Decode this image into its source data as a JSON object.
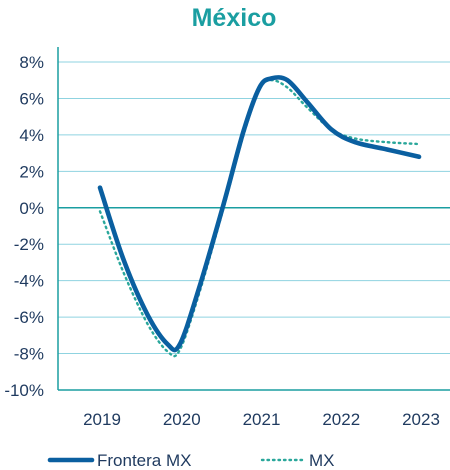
{
  "colors": {
    "title": "#1a9ea1",
    "frontera": "#0a5fa0",
    "mx": "#2aa79b",
    "axis": "#1a9ea1",
    "grid": "#8fd3e0",
    "text": "#1f3a5f"
  },
  "chart_data": {
    "type": "line",
    "title": "México",
    "xlabel": "",
    "ylabel": "",
    "x": [
      2019,
      2020,
      2021,
      2022,
      2023
    ],
    "x_ticks": [
      "2019",
      "2020",
      "2021",
      "2022",
      "2023"
    ],
    "ylim": [
      -10,
      8
    ],
    "y_ticks": [
      "8%",
      "6%",
      "4%",
      "2%",
      "0%",
      "-2%",
      "-4%",
      "-6%",
      "-8%",
      "-10%"
    ],
    "y_tick_values": [
      8,
      6,
      4,
      2,
      0,
      -2,
      -4,
      -6,
      -8,
      -10
    ],
    "grid": "horizontal",
    "legend_position": "bottom",
    "series": [
      {
        "name": "Frontera MX",
        "style": "solid",
        "points": [
          [
            2019.0,
            1.1
          ],
          [
            2019.3,
            -2.9
          ],
          [
            2019.6,
            -5.9
          ],
          [
            2019.85,
            -7.5
          ],
          [
            2020.0,
            -7.5
          ],
          [
            2020.25,
            -4.3
          ],
          [
            2020.55,
            0.2
          ],
          [
            2020.8,
            4.2
          ],
          [
            2021.0,
            6.6
          ],
          [
            2021.15,
            7.1
          ],
          [
            2021.35,
            7.0
          ],
          [
            2021.6,
            5.8
          ],
          [
            2021.9,
            4.3
          ],
          [
            2022.2,
            3.6
          ],
          [
            2022.6,
            3.2
          ],
          [
            2023.0,
            2.8
          ]
        ]
      },
      {
        "name": "MX",
        "style": "dotted",
        "points": [
          [
            2019.0,
            -0.2
          ],
          [
            2019.3,
            -3.6
          ],
          [
            2019.6,
            -6.4
          ],
          [
            2019.85,
            -7.9
          ],
          [
            2020.0,
            -7.8
          ],
          [
            2020.25,
            -4.6
          ],
          [
            2020.55,
            0.0
          ],
          [
            2020.8,
            4.0
          ],
          [
            2021.0,
            6.5
          ],
          [
            2021.15,
            7.0
          ],
          [
            2021.35,
            6.6
          ],
          [
            2021.6,
            5.5
          ],
          [
            2021.9,
            4.3
          ],
          [
            2022.2,
            3.8
          ],
          [
            2022.6,
            3.6
          ],
          [
            2023.0,
            3.5
          ]
        ]
      }
    ]
  }
}
